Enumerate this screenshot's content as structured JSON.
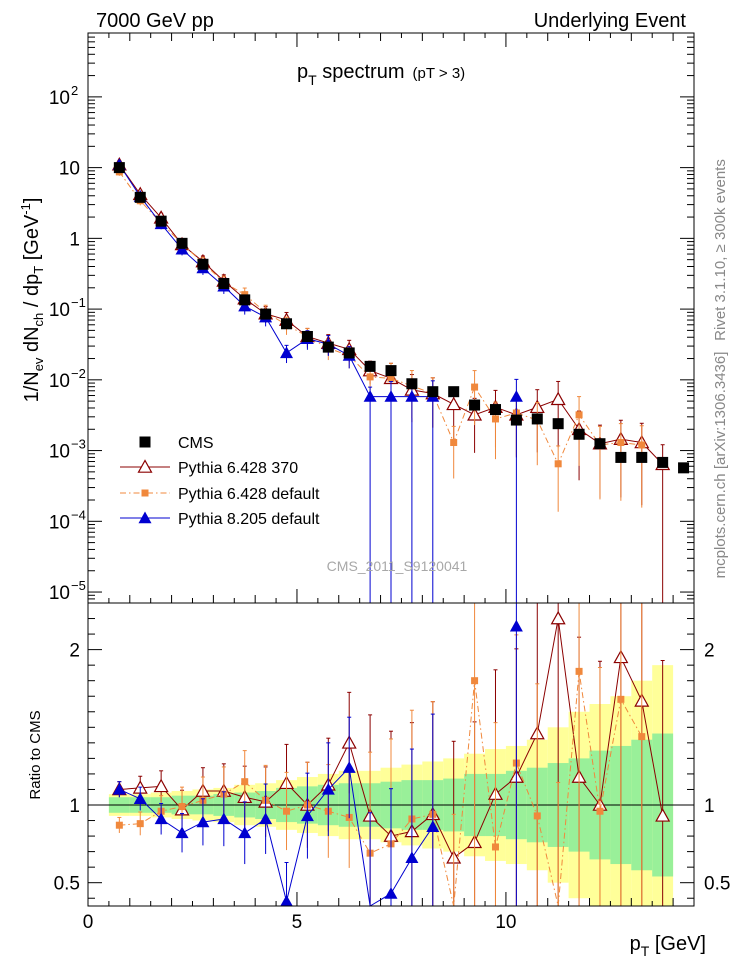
{
  "header": {
    "left": "7000 GeV pp",
    "right": "Underlying Event"
  },
  "side": {
    "rivet": "Rivet 3.1.10, ≥ 300k events",
    "mcplots": "mcplots.cern.ch [arXiv:1306.3436]"
  },
  "chart_data": {
    "type": "scatter",
    "title": "p_T spectrum",
    "title_main": "p",
    "title_sub": "T",
    "title_rest": " spectrum",
    "title_cut": "(pT >  3)",
    "watermark": "CMS_2011_S9120041",
    "xlabel": "p_T [GeV]",
    "xlabel_main": "p",
    "xlabel_sub": "T",
    "xlabel_rest": " [GeV]",
    "ylabel": "1/N_ev dN_ch / dp_T [GeV^-1]",
    "ratio_ylabel": "Ratio to CMS",
    "xlim": [
      0,
      14.5
    ],
    "ylim": [
      7e-06,
      800
    ],
    "ratio_ylim": [
      0.35,
      2.3
    ],
    "xticks": [
      "0",
      "5",
      "10"
    ],
    "ratio_yticks": [
      "0.5",
      "1",
      "2"
    ],
    "x": [
      0.75,
      1.25,
      1.75,
      2.25,
      2.75,
      3.25,
      3.75,
      4.25,
      4.75,
      5.25,
      5.75,
      6.25,
      6.75,
      7.25,
      7.75,
      8.25,
      8.75,
      9.25,
      9.75,
      10.25,
      10.75,
      11.25,
      11.75,
      12.25,
      12.75,
      13.25,
      13.75,
      14.25
    ],
    "series": [
      {
        "name": "CMS",
        "color": "#000000",
        "marker": "square",
        "values": [
          10.0,
          3.8,
          1.75,
          0.85,
          0.43,
          0.23,
          0.135,
          0.085,
          0.062,
          0.041,
          0.029,
          0.024,
          0.0155,
          0.0135,
          0.0088,
          0.0068,
          0.0068,
          0.0044,
          0.0038,
          0.0027,
          0.0028,
          0.0024,
          0.0017,
          0.00125,
          0.0008,
          0.0008,
          0.00068,
          0.00057
        ]
      },
      {
        "name": "Pythia 6.428 370",
        "color": "#8b0000",
        "marker": "triangle-open",
        "line": "solid",
        "values": [
          11.0,
          4.2,
          1.95,
          0.82,
          0.47,
          0.25,
          0.14,
          0.086,
          0.07,
          0.041,
          0.033,
          0.027,
          0.0135,
          0.0105,
          0.0072,
          0.0064,
          0.0045,
          0.0032,
          0.0041,
          0.0032,
          0.0041,
          0.0053,
          0.002,
          0.00125,
          0.00145,
          0.0013,
          0.00064
        ]
      },
      {
        "name": "Pythia 6.428 default",
        "color": "#f0883c",
        "marker": "square-small",
        "line": "dashdot",
        "values": [
          8.7,
          3.4,
          1.65,
          0.84,
          0.45,
          0.24,
          0.16,
          0.09,
          0.06,
          0.041,
          0.028,
          0.022,
          0.011,
          0.0105,
          0.0082,
          0.0064,
          0.0013,
          0.0079,
          0.0028,
          0.0034,
          0.0027,
          0.00065,
          0.0032,
          0.0012,
          0.0013,
          0.0012
        ]
      },
      {
        "name": "Pythia 8.205 default",
        "color": "#0000d0",
        "marker": "triangle-filled",
        "line": "solid",
        "values": [
          11.0,
          3.9,
          1.6,
          0.7,
          0.38,
          0.21,
          0.11,
          0.077,
          0.024,
          0.038,
          0.032,
          0.022,
          0.0058,
          0.0058,
          0.0058,
          0.0058,
          null,
          null,
          null,
          0.0058
        ]
      }
    ],
    "ratio_series": [
      {
        "name": "Pythia 6.428 370",
        "values": [
          1.1,
          1.11,
          1.12,
          0.97,
          1.09,
          1.09,
          1.05,
          1.02,
          1.14,
          1.0,
          1.13,
          1.4,
          0.93,
          0.8,
          0.83,
          0.94,
          0.66,
          0.76,
          1.07,
          1.18,
          1.46,
          2.2,
          1.18,
          1.0,
          1.95,
          1.67,
          0.93
        ]
      },
      {
        "name": "Pythia 6.428 default",
        "values": [
          0.87,
          0.88,
          0.96,
          0.99,
          1.03,
          1.07,
          1.15,
          1.03,
          0.96,
          1.0,
          0.96,
          0.92,
          0.69,
          0.75,
          0.91,
          0.94,
          0.19,
          1.8,
          0.73,
          1.27,
          0.93,
          0.27,
          1.86,
          0.96,
          1.68,
          1.44
        ]
      },
      {
        "name": "Pythia 8.205 default",
        "values": [
          1.1,
          1.04,
          0.91,
          0.82,
          0.89,
          0.91,
          0.82,
          0.91,
          0.38,
          0.93,
          1.1,
          1.24,
          0.3,
          0.43,
          0.66,
          0.86,
          null,
          null,
          null,
          2.15
        ]
      }
    ],
    "band_inner": [
      0.05,
      0.05,
      0.05,
      0.06,
      0.06,
      0.07,
      0.08,
      0.09,
      0.11,
      0.12,
      0.13,
      0.14,
      0.14,
      0.15,
      0.16,
      0.16,
      0.17,
      0.2,
      0.2,
      0.22,
      0.24,
      0.27,
      0.3,
      0.35,
      0.38,
      0.42,
      0.46
    ],
    "band_outer": [
      0.07,
      0.07,
      0.08,
      0.09,
      0.1,
      0.11,
      0.13,
      0.14,
      0.16,
      0.18,
      0.2,
      0.22,
      0.22,
      0.24,
      0.26,
      0.28,
      0.3,
      0.33,
      0.36,
      0.38,
      0.42,
      0.5,
      0.6,
      0.65,
      0.7,
      0.8,
      0.9
    ]
  }
}
